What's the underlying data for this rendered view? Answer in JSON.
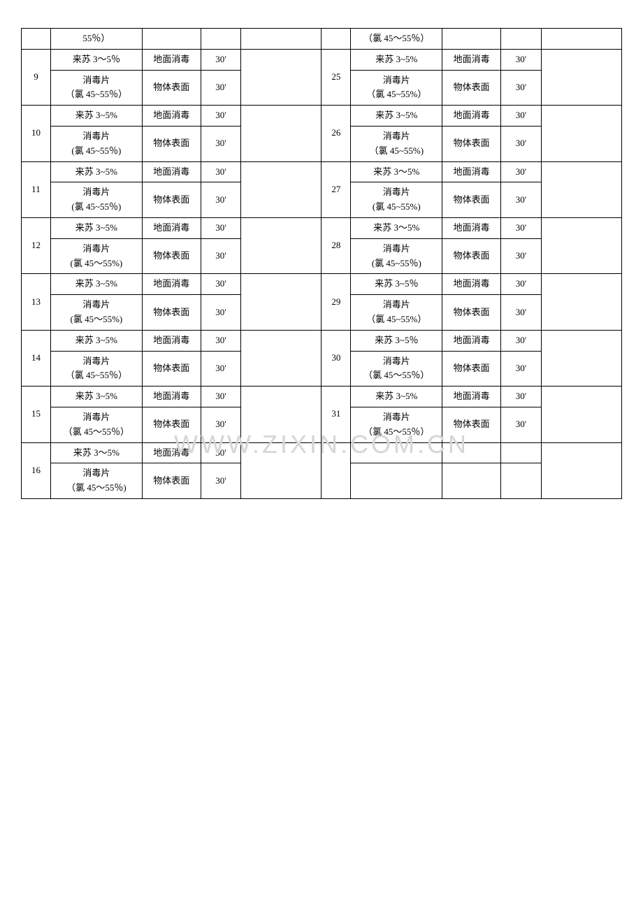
{
  "watermark": "WWW.ZIXIN.COM.CN",
  "table": {
    "columns": {
      "num": 32,
      "agent": 100,
      "method": 64,
      "time": 44,
      "sign": 88
    },
    "labels": {
      "floor": "地面消毒",
      "surface": "物体表面",
      "laisu": "来苏 3~5%",
      "tablet_a": "消毒片",
      "tablet_b1": "(氯 45~55%)",
      "tablet_b2": "（氯 45~55%）",
      "tablet_b3": "（氯 45~55％）",
      "tablet_c": "（氯 45～55％）",
      "tablet_d": "(氯 45～55%)",
      "t30": "30'",
      "empty": ""
    },
    "top_partial": {
      "left": {
        "agent": "55％）",
        "sign": ""
      },
      "right": {
        "agent": "（氯 45～55％）",
        "method": "",
        "time": "",
        "sign": ""
      }
    },
    "rows": [
      {
        "ln": "9",
        "rn": "25",
        "l_a1": "来苏 3～5％",
        "l_a2": "消毒片（氯 45~55％）",
        "r_a1": "来苏 3~5%",
        "r_a2": "消毒片（氯 45~55%）"
      },
      {
        "ln": "10",
        "rn": "26",
        "l_a1": "来苏 3~5%",
        "l_a2": "消毒片(氯 45~55％)",
        "r_a1": "来苏 3~5%",
        "r_a2": "消毒片（氯 45~55%)"
      },
      {
        "ln": "11",
        "rn": "27",
        "l_a1": "来苏 3~5%",
        "l_a2": "消毒片(氯 45~55％)",
        "r_a1": "来苏 3～5%",
        "r_a2": "消毒片(氯 45~55%)"
      },
      {
        "ln": "12",
        "rn": "28",
        "l_a1": "来苏 3~5%",
        "l_a2": "消毒片(氯 45～55%)",
        "r_a1": "来苏 3～5%",
        "r_a2": "消毒片(氯 45~55％)"
      },
      {
        "ln": "13",
        "rn": "29",
        "l_a1": "来苏 3~5%",
        "l_a2": "消毒片(氯 45～55%)",
        "r_a1": "来苏 3~5％",
        "r_a2": "消毒片（氯 45~55%）"
      },
      {
        "ln": "14",
        "rn": "30",
        "l_a1": "来苏 3~5%",
        "l_a2": "消毒片（氯 45~55％）",
        "r_a1": "来苏 3~5％",
        "r_a2": "消毒片（氯 45～55％）"
      },
      {
        "ln": "15",
        "rn": "31",
        "l_a1": "来苏 3~5%",
        "l_a2": "消毒片（氯 45～55％）",
        "r_a1": "来苏 3~5%",
        "r_a2": "消毒片（氯 45～55％）"
      },
      {
        "ln": "16",
        "rn": "",
        "l_a1": "来苏 3～5%",
        "l_a2": "消毒片（氯 45～55％)",
        "r_a1": "",
        "r_a2": ""
      }
    ]
  }
}
